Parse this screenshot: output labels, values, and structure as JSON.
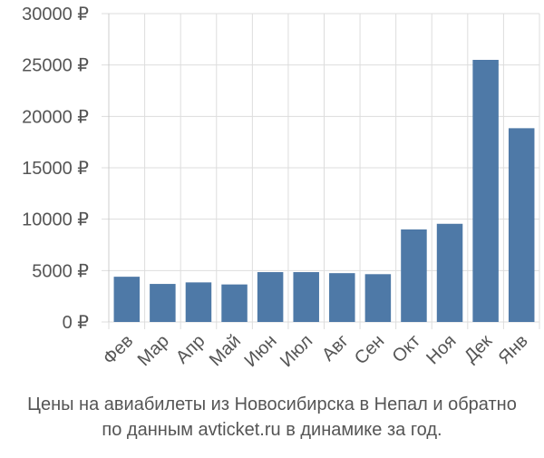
{
  "chart_data": {
    "type": "bar",
    "categories": [
      "Фев",
      "Мар",
      "Апр",
      "Май",
      "Июн",
      "Июл",
      "Авг",
      "Сен",
      "Окт",
      "Ноя",
      "Дек",
      "Янв"
    ],
    "values": [
      4400,
      3700,
      3850,
      3650,
      4850,
      4850,
      4750,
      4650,
      9000,
      9550,
      25500,
      18850
    ],
    "ylim": [
      0,
      30000
    ],
    "yticks": [
      0,
      5000,
      10000,
      15000,
      20000,
      25000,
      30000
    ],
    "ytick_labels": [
      "0 ₽",
      "5000 ₽",
      "10000 ₽",
      "15000 ₽",
      "20000 ₽",
      "25000 ₽",
      "30000 ₽"
    ],
    "grid": true,
    "bar_color": "#4e79a7"
  },
  "caption": {
    "line1": "Цены на авиабилеты из Новосибирска в Непал и обратно",
    "line2": "по данным avticket.ru в динамике за год."
  }
}
